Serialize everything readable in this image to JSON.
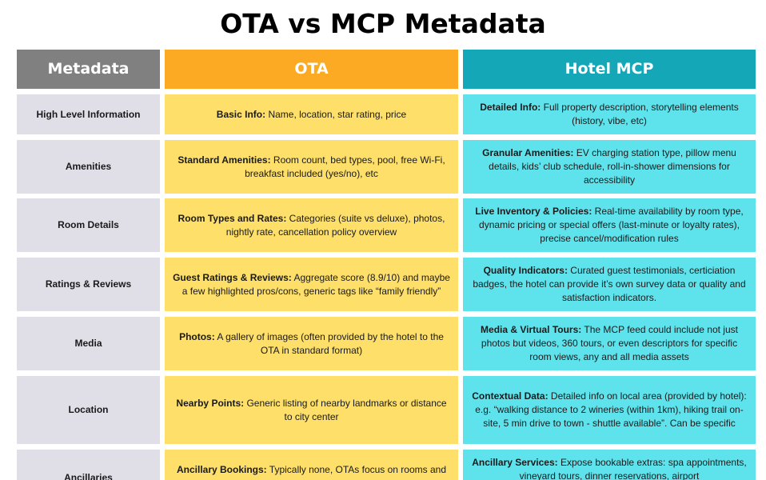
{
  "title": "OTA vs MCP Metadata",
  "headers": [
    "Metadata",
    "OTA",
    "Hotel MCP"
  ],
  "rows": [
    {
      "metadata": "High Level Information",
      "ota": {
        "label": "Basic Info:",
        "text": " Name, location, star rating, price"
      },
      "mcp": {
        "label": "Detailed Info:",
        "text": " Full property description, storytelling elements (history, vibe, etc)"
      }
    },
    {
      "metadata": "Amenities",
      "ota": {
        "label": "Standard Amenities:",
        "text": " Room count, bed types, pool, free Wi-Fi, breakfast included (yes/no), etc"
      },
      "mcp": {
        "label": "Granular Amenities:",
        "text": " EV charging station type, pillow menu details, kids’ club schedule, roll-in-shower dimensions for accessibility"
      }
    },
    {
      "metadata": "Room Details",
      "ota": {
        "label": "Room Types and Rates:",
        "text": " Categories (suite vs deluxe), photos, nightly rate, cancellation policy overview"
      },
      "mcp": {
        "label": "Live Inventory & Policies:",
        "text": " Real-time availability by room type, dynamic pricing or special offers (last-minute or loyalty rates), precise cancel/modification rules"
      }
    },
    {
      "metadata": "Ratings & Reviews",
      "ota": {
        "label": "Guest Ratings & Reviews:",
        "text": " Aggregate score (8.9/10) and maybe a few highlighted pros/cons, generic tags like “family friendly”"
      },
      "mcp": {
        "label": "Quality Indicators:",
        "text": " Curated guest testimonials, certiciation badges, the hotel can provide it’s own survey data or quality and satisfaction indicators."
      }
    },
    {
      "metadata": "Media",
      "ota": {
        "label": "Photos:",
        "text": " A gallery of images (often provided by the hotel to the OTA in standard format)"
      },
      "mcp": {
        "label": "Media & Virtual Tours:",
        "text": " The MCP feed could include not just photos but videos, 360 tours, or even descriptors for specific room views, any and all media assets"
      }
    },
    {
      "metadata": "Location",
      "ota": {
        "label": "Nearby Points:",
        "text": " Generic listing of nearby landmarks or distance to city center"
      },
      "mcp": {
        "label": "Contextual Data:",
        "text": " Detailed info on local area (provided by hotel): e.g. “walking distance to 2 wineries (within 1km), hiking trail on-site, 5 min drive to town - shuttle available”. Can be specific"
      }
    },
    {
      "metadata": "Ancillaries",
      "ota": {
        "label": "Ancillary Bookings:",
        "text": " Typically none, OTAs focus on rooms and"
      },
      "mcp": {
        "label": "Ancillary Services:",
        "text": " Expose bookable extras: spa appointments, vineyard tours, dinner reservations, airport"
      }
    }
  ]
}
